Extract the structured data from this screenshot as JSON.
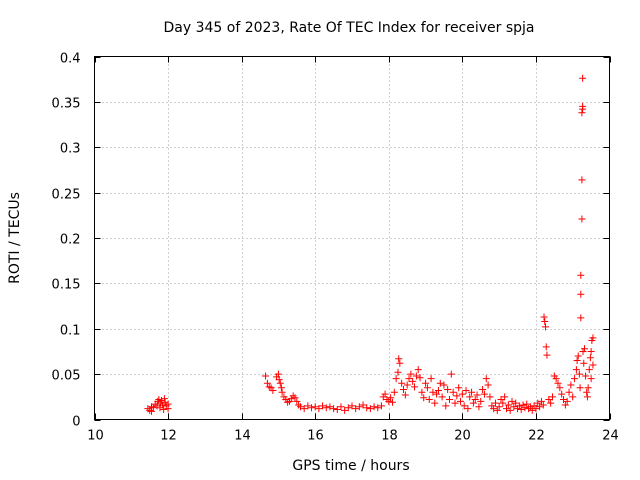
{
  "chart_data": {
    "type": "scatter",
    "title": "Day 345 of 2023, Rate Of TEC Index for receiver spja",
    "xlabel": "GPS time / hours",
    "ylabel": "ROTI / TECUs",
    "xlim": [
      10,
      24
    ],
    "ylim": [
      0,
      0.4
    ],
    "x_ticks": [
      10,
      12,
      14,
      16,
      18,
      20,
      22,
      24
    ],
    "y_ticks": [
      0,
      0.05,
      0.1,
      0.15,
      0.2,
      0.25,
      0.3,
      0.35,
      0.4
    ],
    "x_tick_labels": [
      "10",
      "12",
      "14",
      "16",
      "18",
      "20",
      "22",
      "24"
    ],
    "y_tick_labels": [
      "0",
      "0.05",
      "0.1",
      "0.15",
      "0.2",
      "0.25",
      "0.3",
      "0.35",
      "0.4"
    ],
    "grid": true,
    "marker": "plus",
    "color": "#ff0000",
    "series": [
      {
        "points": [
          [
            11.45,
            0.012
          ],
          [
            11.5,
            0.01
          ],
          [
            11.55,
            0.014
          ],
          [
            11.6,
            0.013
          ],
          [
            11.65,
            0.017
          ],
          [
            11.7,
            0.015
          ],
          [
            11.72,
            0.02
          ],
          [
            11.75,
            0.022
          ],
          [
            11.8,
            0.018
          ],
          [
            11.82,
            0.021
          ],
          [
            11.85,
            0.016
          ],
          [
            11.9,
            0.023
          ],
          [
            11.92,
            0.019
          ],
          [
            11.95,
            0.015
          ],
          [
            12.0,
            0.017
          ],
          [
            12.0,
            0.012
          ],
          [
            11.78,
            0.013
          ],
          [
            11.88,
            0.011
          ],
          [
            11.55,
            0.009
          ],
          [
            14.65,
            0.048
          ],
          [
            14.7,
            0.04
          ],
          [
            14.75,
            0.036
          ],
          [
            14.8,
            0.035
          ],
          [
            14.85,
            0.032
          ],
          [
            14.95,
            0.047
          ],
          [
            15.0,
            0.05
          ],
          [
            15.02,
            0.044
          ],
          [
            15.05,
            0.04
          ],
          [
            15.08,
            0.035
          ],
          [
            15.1,
            0.03
          ],
          [
            15.15,
            0.025
          ],
          [
            15.2,
            0.022
          ],
          [
            15.25,
            0.019
          ],
          [
            15.3,
            0.02
          ],
          [
            15.35,
            0.023
          ],
          [
            15.4,
            0.026
          ],
          [
            15.45,
            0.024
          ],
          [
            15.5,
            0.02
          ],
          [
            15.55,
            0.016
          ],
          [
            15.6,
            0.014
          ],
          [
            15.7,
            0.012
          ],
          [
            15.8,
            0.015
          ],
          [
            15.9,
            0.013
          ],
          [
            16.0,
            0.014
          ],
          [
            16.1,
            0.012
          ],
          [
            16.2,
            0.015
          ],
          [
            16.3,
            0.013
          ],
          [
            16.4,
            0.014
          ],
          [
            16.5,
            0.012
          ],
          [
            16.6,
            0.011
          ],
          [
            16.7,
            0.014
          ],
          [
            16.8,
            0.01
          ],
          [
            16.9,
            0.013
          ],
          [
            17.0,
            0.015
          ],
          [
            17.1,
            0.012
          ],
          [
            17.2,
            0.014
          ],
          [
            17.3,
            0.016
          ],
          [
            17.4,
            0.013
          ],
          [
            17.5,
            0.012
          ],
          [
            17.6,
            0.014
          ],
          [
            17.7,
            0.013
          ],
          [
            17.8,
            0.015
          ],
          [
            17.85,
            0.025
          ],
          [
            17.9,
            0.028
          ],
          [
            17.95,
            0.022
          ],
          [
            18.0,
            0.02
          ],
          [
            18.05,
            0.024
          ],
          [
            18.1,
            0.019
          ],
          [
            18.15,
            0.03
          ],
          [
            18.2,
            0.045
          ],
          [
            18.25,
            0.052
          ],
          [
            18.27,
            0.067
          ],
          [
            18.3,
            0.062
          ],
          [
            18.35,
            0.04
          ],
          [
            18.4,
            0.033
          ],
          [
            18.45,
            0.027
          ],
          [
            18.5,
            0.038
          ],
          [
            18.55,
            0.045
          ],
          [
            18.6,
            0.05
          ],
          [
            18.65,
            0.042
          ],
          [
            18.7,
            0.036
          ],
          [
            18.75,
            0.048
          ],
          [
            18.8,
            0.055
          ],
          [
            18.85,
            0.046
          ],
          [
            18.9,
            0.03
          ],
          [
            18.95,
            0.024
          ],
          [
            19.0,
            0.04
          ],
          [
            19.05,
            0.035
          ],
          [
            19.1,
            0.022
          ],
          [
            19.15,
            0.045
          ],
          [
            19.2,
            0.03
          ],
          [
            19.25,
            0.018
          ],
          [
            19.3,
            0.028
          ],
          [
            19.35,
            0.032
          ],
          [
            19.4,
            0.04
          ],
          [
            19.45,
            0.025
          ],
          [
            19.5,
            0.038
          ],
          [
            19.55,
            0.015
          ],
          [
            19.6,
            0.033
          ],
          [
            19.65,
            0.022
          ],
          [
            19.7,
            0.05
          ],
          [
            19.75,
            0.03
          ],
          [
            19.8,
            0.018
          ],
          [
            19.85,
            0.026
          ],
          [
            19.9,
            0.035
          ],
          [
            19.95,
            0.02
          ],
          [
            20.0,
            0.028
          ],
          [
            20.05,
            0.015
          ],
          [
            20.1,
            0.032
          ],
          [
            20.15,
            0.012
          ],
          [
            20.2,
            0.025
          ],
          [
            20.25,
            0.03
          ],
          [
            20.3,
            0.018
          ],
          [
            20.35,
            0.022
          ],
          [
            20.4,
            0.027
          ],
          [
            20.45,
            0.014
          ],
          [
            20.5,
            0.02
          ],
          [
            20.55,
            0.033
          ],
          [
            20.6,
            0.028
          ],
          [
            20.65,
            0.045
          ],
          [
            20.7,
            0.038
          ],
          [
            20.75,
            0.025
          ],
          [
            20.8,
            0.015
          ],
          [
            20.85,
            0.012
          ],
          [
            20.9,
            0.018
          ],
          [
            20.95,
            0.01
          ],
          [
            21.0,
            0.014
          ],
          [
            21.05,
            0.022
          ],
          [
            21.1,
            0.018
          ],
          [
            21.15,
            0.025
          ],
          [
            21.2,
            0.012
          ],
          [
            21.25,
            0.016
          ],
          [
            21.3,
            0.01
          ],
          [
            21.35,
            0.02
          ],
          [
            21.4,
            0.014
          ],
          [
            21.45,
            0.018
          ],
          [
            21.5,
            0.012
          ],
          [
            21.55,
            0.015
          ],
          [
            21.6,
            0.011
          ],
          [
            21.65,
            0.016
          ],
          [
            21.7,
            0.013
          ],
          [
            21.75,
            0.017
          ],
          [
            21.8,
            0.012
          ],
          [
            21.85,
            0.014
          ],
          [
            21.9,
            0.01
          ],
          [
            21.95,
            0.015
          ],
          [
            22.0,
            0.012
          ],
          [
            22.05,
            0.018
          ],
          [
            22.1,
            0.014
          ],
          [
            22.15,
            0.02
          ],
          [
            22.2,
            0.016
          ],
          [
            22.22,
            0.113
          ],
          [
            22.24,
            0.108
          ],
          [
            22.26,
            0.102
          ],
          [
            22.28,
            0.08
          ],
          [
            22.3,
            0.071
          ],
          [
            22.35,
            0.022
          ],
          [
            22.4,
            0.018
          ],
          [
            22.45,
            0.025
          ],
          [
            22.5,
            0.048
          ],
          [
            22.55,
            0.045
          ],
          [
            22.6,
            0.04
          ],
          [
            22.65,
            0.035
          ],
          [
            22.7,
            0.028
          ],
          [
            22.75,
            0.022
          ],
          [
            22.8,
            0.016
          ],
          [
            22.85,
            0.02
          ],
          [
            22.9,
            0.03
          ],
          [
            22.95,
            0.038
          ],
          [
            23.0,
            0.025
          ],
          [
            23.05,
            0.045
          ],
          [
            23.1,
            0.055
          ],
          [
            23.12,
            0.065
          ],
          [
            23.15,
            0.07
          ],
          [
            23.18,
            0.05
          ],
          [
            23.2,
            0.035
          ],
          [
            23.22,
            0.112
          ],
          [
            23.22,
            0.138
          ],
          [
            23.22,
            0.159
          ],
          [
            23.25,
            0.221
          ],
          [
            23.25,
            0.264
          ],
          [
            23.25,
            0.338
          ],
          [
            23.27,
            0.342
          ],
          [
            23.27,
            0.345
          ],
          [
            23.27,
            0.376
          ],
          [
            23.28,
            0.075
          ],
          [
            23.3,
            0.062
          ],
          [
            23.32,
            0.078
          ],
          [
            23.35,
            0.048
          ],
          [
            23.38,
            0.03
          ],
          [
            23.4,
            0.025
          ],
          [
            23.42,
            0.035
          ],
          [
            23.45,
            0.055
          ],
          [
            23.48,
            0.068
          ],
          [
            23.5,
            0.075
          ],
          [
            23.52,
            0.087
          ],
          [
            23.55,
            0.09
          ],
          [
            23.55,
            0.06
          ],
          [
            23.5,
            0.045
          ]
        ]
      }
    ]
  }
}
